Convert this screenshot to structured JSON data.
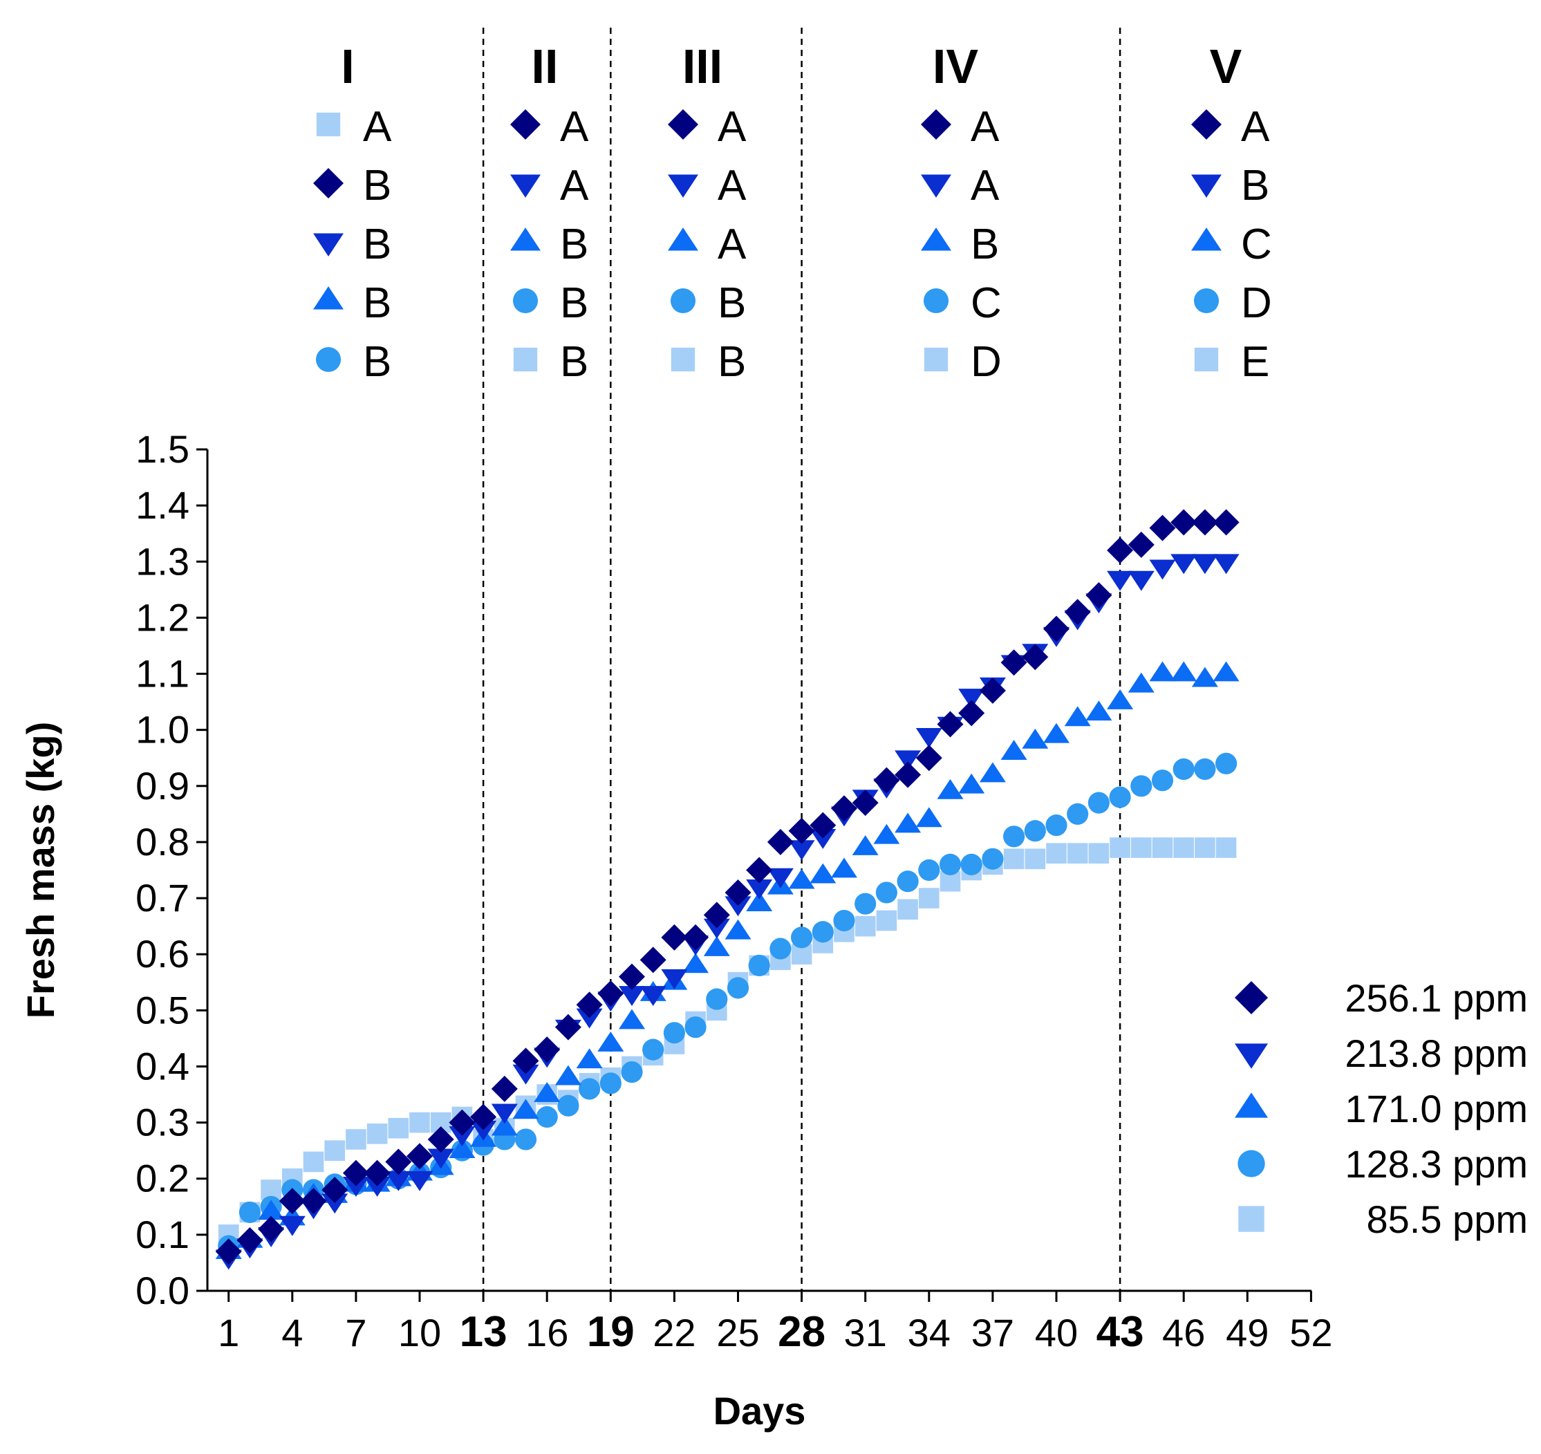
{
  "chart_data": {
    "type": "scatter",
    "title": "",
    "xlabel": "Days",
    "ylabel": "Fresh mass (kg)",
    "xlim": [
      0,
      52
    ],
    "ylim": [
      0,
      1.5
    ],
    "grid": false,
    "x_ticks": [
      1,
      4,
      7,
      10,
      13,
      16,
      19,
      22,
      25,
      28,
      31,
      34,
      37,
      40,
      43,
      46,
      49,
      52
    ],
    "x_ticks_bold": [
      13,
      19,
      28,
      43
    ],
    "y_ticks": [
      "0.0",
      "0.1",
      "0.2",
      "0.3",
      "0.4",
      "0.5",
      "0.6",
      "0.7",
      "0.8",
      "0.9",
      "1.0",
      "1.1",
      "1.2",
      "1.3",
      "1.4",
      "1.5"
    ],
    "period_boundaries": [
      13,
      19,
      28,
      43
    ],
    "legend_position": "bottom-right",
    "x": [
      1,
      2,
      3,
      4,
      5,
      6,
      7,
      8,
      9,
      10,
      11,
      12,
      13,
      14,
      15,
      16,
      17,
      18,
      19,
      20,
      21,
      22,
      23,
      24,
      25,
      26,
      27,
      28,
      29,
      30,
      31,
      32,
      33,
      34,
      35,
      36,
      37,
      38,
      39,
      40,
      41,
      42,
      43,
      44,
      45,
      46,
      47,
      48
    ],
    "series": [
      {
        "name": "256.1 ppm",
        "marker": "diamond",
        "color": "#000080",
        "values": [
          0.07,
          0.09,
          0.11,
          0.16,
          0.16,
          0.18,
          0.21,
          0.21,
          0.23,
          0.24,
          0.27,
          0.3,
          0.31,
          0.36,
          0.41,
          0.43,
          0.47,
          0.51,
          0.53,
          0.56,
          0.59,
          0.63,
          0.63,
          0.67,
          0.71,
          0.75,
          0.8,
          0.82,
          0.83,
          0.86,
          0.87,
          0.91,
          0.92,
          0.95,
          1.01,
          1.03,
          1.07,
          1.12,
          1.13,
          1.18,
          1.21,
          1.24,
          1.32,
          1.33,
          1.36,
          1.37,
          1.37,
          1.37
        ]
      },
      {
        "name": "213.8 ppm",
        "marker": "triangle-down",
        "color": "#0a2ecf",
        "values": [
          0.06,
          0.08,
          0.1,
          0.12,
          0.15,
          0.16,
          0.19,
          0.19,
          0.2,
          0.2,
          0.24,
          0.28,
          0.29,
          0.32,
          0.39,
          0.42,
          0.47,
          0.49,
          0.52,
          0.53,
          0.53,
          0.56,
          0.62,
          0.65,
          0.69,
          0.72,
          0.74,
          0.79,
          0.81,
          0.85,
          0.88,
          0.9,
          0.95,
          0.99,
          1.01,
          1.06,
          1.08,
          1.12,
          1.14,
          1.17,
          1.2,
          1.23,
          1.27,
          1.27,
          1.29,
          1.3,
          1.3,
          1.3
        ]
      },
      {
        "name": "171.0 ppm",
        "marker": "triangle-up",
        "color": "#0b6cf5",
        "values": [
          0.07,
          0.09,
          0.14,
          0.13,
          0.17,
          0.17,
          0.19,
          0.19,
          0.2,
          0.21,
          0.22,
          0.25,
          0.27,
          0.29,
          0.32,
          0.35,
          0.38,
          0.41,
          0.44,
          0.48,
          0.53,
          0.55,
          0.58,
          0.61,
          0.64,
          0.69,
          0.72,
          0.73,
          0.74,
          0.75,
          0.79,
          0.81,
          0.83,
          0.84,
          0.89,
          0.9,
          0.92,
          0.96,
          0.98,
          0.99,
          1.02,
          1.03,
          1.05,
          1.08,
          1.1,
          1.1,
          1.09,
          1.1
        ]
      },
      {
        "name": "128.3 ppm",
        "marker": "circle",
        "color": "#2e9af2",
        "values": [
          0.08,
          0.14,
          0.15,
          0.18,
          0.18,
          0.19,
          0.19,
          0.2,
          0.2,
          0.21,
          0.22,
          0.25,
          0.26,
          0.27,
          0.27,
          0.31,
          0.33,
          0.36,
          0.37,
          0.39,
          0.43,
          0.46,
          0.47,
          0.52,
          0.54,
          0.58,
          0.61,
          0.63,
          0.64,
          0.66,
          0.69,
          0.71,
          0.73,
          0.75,
          0.76,
          0.76,
          0.77,
          0.81,
          0.82,
          0.83,
          0.85,
          0.87,
          0.88,
          0.9,
          0.91,
          0.93,
          0.93,
          0.94
        ]
      },
      {
        "name": "85.5 ppm",
        "marker": "square",
        "color": "#a6cff8",
        "values": [
          0.1,
          0.14,
          0.18,
          0.2,
          0.23,
          0.25,
          0.27,
          0.28,
          0.29,
          0.3,
          0.3,
          0.31,
          0.27,
          0.29,
          0.33,
          0.35,
          0.34,
          0.37,
          0.38,
          0.4,
          0.42,
          0.44,
          0.48,
          0.5,
          0.55,
          0.58,
          0.59,
          0.6,
          0.62,
          0.64,
          0.65,
          0.66,
          0.68,
          0.7,
          0.73,
          0.75,
          0.76,
          0.77,
          0.77,
          0.78,
          0.78,
          0.78,
          0.79,
          0.79,
          0.79,
          0.79,
          0.79,
          0.79
        ]
      }
    ],
    "period_annotations": [
      {
        "title": "I",
        "rows": [
          {
            "marker": "square",
            "letter": "A"
          },
          {
            "marker": "diamond",
            "letter": "B"
          },
          {
            "marker": "triangle-down",
            "letter": "B"
          },
          {
            "marker": "triangle-up",
            "letter": "B"
          },
          {
            "marker": "circle",
            "letter": "B"
          }
        ]
      },
      {
        "title": "II",
        "rows": [
          {
            "marker": "diamond",
            "letter": "A"
          },
          {
            "marker": "triangle-down",
            "letter": "A"
          },
          {
            "marker": "triangle-up",
            "letter": "B"
          },
          {
            "marker": "circle",
            "letter": "B"
          },
          {
            "marker": "square",
            "letter": "B"
          }
        ]
      },
      {
        "title": "III",
        "rows": [
          {
            "marker": "diamond",
            "letter": "A"
          },
          {
            "marker": "triangle-down",
            "letter": "A"
          },
          {
            "marker": "triangle-up",
            "letter": "A"
          },
          {
            "marker": "circle",
            "letter": "B"
          },
          {
            "marker": "square",
            "letter": "B"
          }
        ]
      },
      {
        "title": "IV",
        "rows": [
          {
            "marker": "diamond",
            "letter": "A"
          },
          {
            "marker": "triangle-down",
            "letter": "A"
          },
          {
            "marker": "triangle-up",
            "letter": "B"
          },
          {
            "marker": "circle",
            "letter": "C"
          },
          {
            "marker": "square",
            "letter": "D"
          }
        ]
      },
      {
        "title": "V",
        "rows": [
          {
            "marker": "diamond",
            "letter": "A"
          },
          {
            "marker": "triangle-down",
            "letter": "B"
          },
          {
            "marker": "triangle-up",
            "letter": "C"
          },
          {
            "marker": "circle",
            "letter": "D"
          },
          {
            "marker": "square",
            "letter": "E"
          }
        ]
      }
    ]
  }
}
